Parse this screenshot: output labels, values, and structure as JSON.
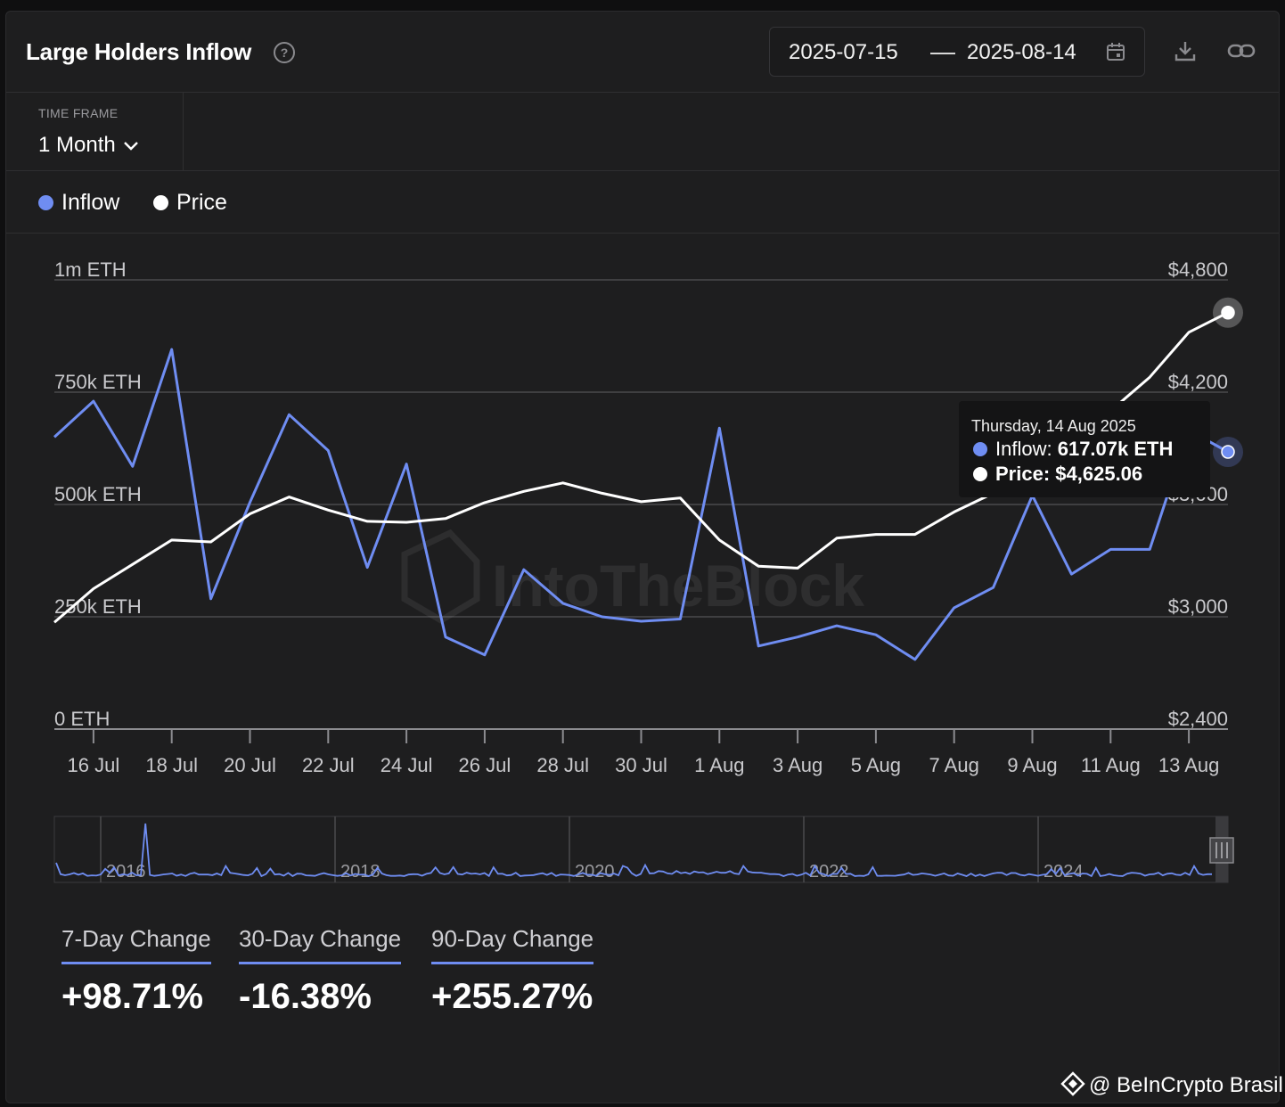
{
  "header": {
    "title": "Large Holders Inflow",
    "help_icon": "?",
    "date_start": "2025-07-15",
    "date_end": "2025-08-14"
  },
  "timeframe": {
    "label": "TIME FRAME",
    "value": "1 Month"
  },
  "legend": [
    {
      "name": "Inflow",
      "color": "#6f8df2"
    },
    {
      "name": "Price",
      "color": "#ffffff"
    }
  ],
  "tooltip": {
    "date": "Thursday, 14 Aug 2025",
    "inflow_label": "Inflow:",
    "inflow_value": "617.07k ETH",
    "price_label": "Price:",
    "price_value": "$4,625.06"
  },
  "watermark": "IntoTheBlock",
  "chart_data": {
    "type": "line",
    "x": [
      "2025-07-15",
      "2025-07-16",
      "2025-07-17",
      "2025-07-18",
      "2025-07-19",
      "2025-07-20",
      "2025-07-21",
      "2025-07-22",
      "2025-07-23",
      "2025-07-24",
      "2025-07-25",
      "2025-07-26",
      "2025-07-27",
      "2025-07-28",
      "2025-07-29",
      "2025-07-30",
      "2025-07-31",
      "2025-08-01",
      "2025-08-02",
      "2025-08-03",
      "2025-08-04",
      "2025-08-05",
      "2025-08-06",
      "2025-08-07",
      "2025-08-08",
      "2025-08-09",
      "2025-08-10",
      "2025-08-11",
      "2025-08-12",
      "2025-08-13",
      "2025-08-14"
    ],
    "x_tick_labels": [
      "16 Jul",
      "18 Jul",
      "20 Jul",
      "22 Jul",
      "24 Jul",
      "26 Jul",
      "28 Jul",
      "30 Jul",
      "1 Aug",
      "3 Aug",
      "5 Aug",
      "7 Aug",
      "9 Aug",
      "11 Aug",
      "13 Aug"
    ],
    "y_left": {
      "ticks": [
        "0 ETH",
        "250k ETH",
        "500k ETH",
        "750k ETH",
        "1m ETH"
      ],
      "range": [
        0,
        1000000
      ]
    },
    "y_right": {
      "ticks": [
        "$2,400",
        "$3,000",
        "$3,600",
        "$4,200",
        "$4,800"
      ],
      "range": [
        2400,
        4800
      ]
    },
    "series": [
      {
        "name": "Inflow",
        "axis": "left",
        "color": "#6f8df2",
        "values": [
          650000,
          730000,
          585000,
          845000,
          290000,
          505000,
          700000,
          620000,
          360000,
          590000,
          205000,
          165000,
          355000,
          280000,
          250000,
          240000,
          245000,
          670000,
          185000,
          205000,
          230000,
          210000,
          155000,
          270000,
          315000,
          520000,
          345000,
          400000,
          400000,
          665000,
          617070
        ]
      },
      {
        "name": "Price",
        "axis": "right",
        "color": "#ffffff",
        "values": [
          2970,
          3150,
          3280,
          3410,
          3400,
          3550,
          3640,
          3570,
          3510,
          3505,
          3525,
          3610,
          3670,
          3715,
          3660,
          3615,
          3635,
          3410,
          3270,
          3260,
          3420,
          3440,
          3440,
          3560,
          3660,
          3920,
          4090,
          4100,
          4280,
          4520,
          4625.06
        ]
      }
    ],
    "navigator_year_labels": [
      "2016",
      "2018",
      "2020",
      "2022",
      "2024"
    ]
  },
  "stats": [
    {
      "label": "7-Day Change",
      "value": "+98.71%"
    },
    {
      "label": "30-Day Change",
      "value": "-16.38%"
    },
    {
      "label": "90-Day Change",
      "value": "+255.27%"
    }
  ],
  "credit": "@ BeInCrypto Brasil"
}
